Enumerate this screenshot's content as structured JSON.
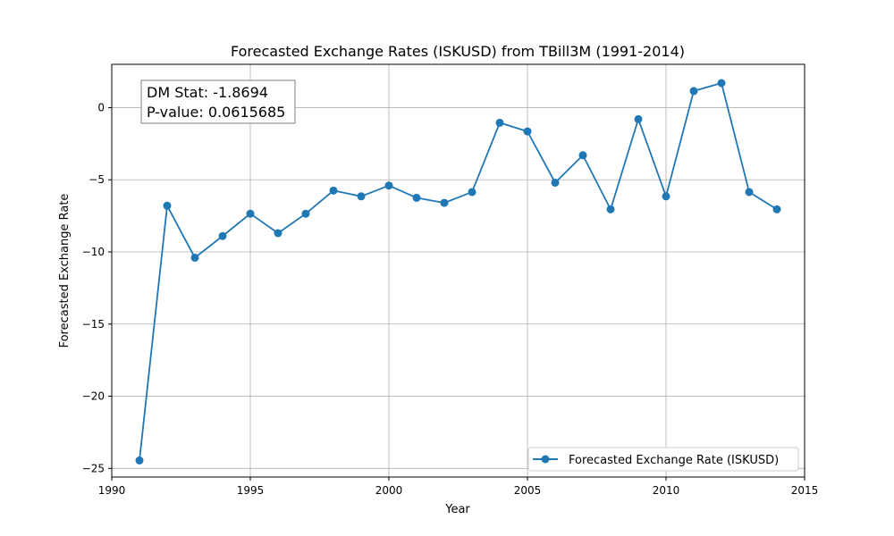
{
  "chart_data": {
    "type": "line",
    "title": "Forecasted Exchange Rates (ISKUSD) from TBill3M (1991-2014)",
    "xlabel": "Year",
    "ylabel": "Forecasted Exchange Rate",
    "xlim": [
      1990,
      2015
    ],
    "ylim": [
      -25.6,
      3.0
    ],
    "xticks": [
      1990,
      1995,
      2000,
      2005,
      2010,
      2015
    ],
    "yticks": [
      -25,
      -20,
      -15,
      -10,
      -5,
      0
    ],
    "ytick_labels": [
      "−25",
      "−20",
      "−15",
      "−10",
      "−5",
      "0"
    ],
    "grid": true,
    "legend_position": "lower-right",
    "series": [
      {
        "name": "Forecasted Exchange Rate (ISKUSD)",
        "color": "#1f77b4",
        "marker": "circle",
        "x": [
          1991,
          1992,
          1993,
          1994,
          1995,
          1996,
          1997,
          1998,
          1999,
          2000,
          2001,
          2002,
          2003,
          2004,
          2005,
          2006,
          2007,
          2008,
          2009,
          2010,
          2011,
          2012,
          2013,
          2014
        ],
        "y": [
          -24.45,
          -6.8,
          -10.4,
          -8.9,
          -7.35,
          -8.7,
          -7.35,
          -5.75,
          -6.15,
          -5.4,
          -6.25,
          -6.6,
          -5.85,
          -1.05,
          -1.65,
          -5.2,
          -3.3,
          -7.05,
          -0.8,
          -6.15,
          1.15,
          1.7,
          -5.85,
          -7.05
        ]
      }
    ],
    "annotation": {
      "lines": [
        "DM Stat: -1.8694",
        "P-value: 0.0615685"
      ]
    }
  }
}
